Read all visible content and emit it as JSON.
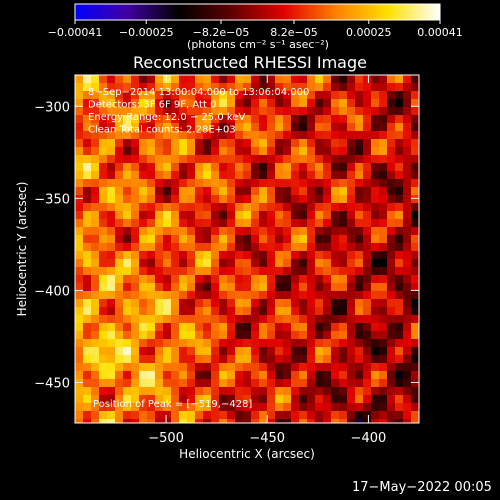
{
  "chart_data": {
    "type": "heatmap",
    "title": "Reconstructed RHESSI Image",
    "xlabel": "Heliocentric X (arcsec)",
    "ylabel": "Heliocentric Y (arcsec)",
    "xlim": [
      -545,
      -375
    ],
    "ylim": [
      -472,
      -283
    ],
    "xticks": [
      {
        "value": -500,
        "label": "−500"
      },
      {
        "value": -450,
        "label": "−450"
      },
      {
        "value": -400,
        "label": "−400"
      }
    ],
    "yticks": [
      {
        "value": -300,
        "label": "−300"
      },
      {
        "value": -350,
        "label": "−350"
      },
      {
        "value": -400,
        "label": "−400"
      },
      {
        "value": -450,
        "label": "−450"
      }
    ],
    "colorbar": {
      "range": [
        -0.00041,
        0.00041
      ],
      "ticks": [
        {
          "value": -0.00041,
          "label": "−0.00041"
        },
        {
          "value": -0.00025,
          "label": "−0.00025"
        },
        {
          "value": -8.2e-05,
          "label": "−8.2e−05"
        },
        {
          "value": 8.2e-05,
          "label": "8.2e−05"
        },
        {
          "value": 0.00025,
          "label": "0.00025"
        },
        {
          "value": 0.00041,
          "label": "0.00041"
        }
      ],
      "units": "(photons cm⁻² s⁻¹ asec⁻²)",
      "colormap": [
        "#0000ff",
        "#4000a0",
        "#000000",
        "#600000",
        "#e00000",
        "#ff8000",
        "#ffe000",
        "#ffffff"
      ]
    },
    "annotations": [
      "8−Sep−2014 13:00:04.000 to 13:06:04.000",
      "Detectors: 3F 6F 9F, Att 0",
      "Energy Range: 12.0 − 25.0 keV",
      "Clean    Total counts: 2.28E+03"
    ],
    "peak_label": "Position of Peak = [−519,−428]",
    "peak": {
      "x": -519,
      "y": -428
    },
    "grid": false
  },
  "footer": {
    "date": "17−May−2022 00:05"
  }
}
